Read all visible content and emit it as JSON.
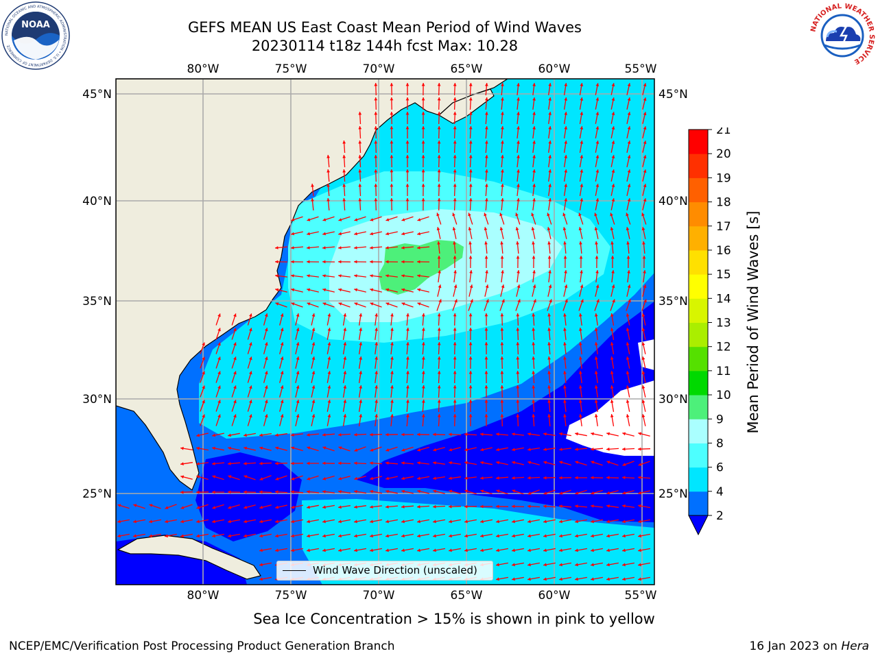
{
  "title": {
    "line1": "GEFS MEAN US East Coast Mean Period of Wind Waves",
    "line2": "20230114 t18z 144h fcst   Max: 10.28"
  },
  "logos": {
    "left": "NOAA",
    "left_ring_text": "NATIONAL OCEANIC AND ATMOSPHERIC ADMINISTRATION • U.S. DEPARTMENT OF COMMERCE",
    "right_ring_text": "NATIONAL WEATHER SERVICE"
  },
  "map": {
    "lon_ticks": [
      "80°W",
      "75°W",
      "70°W",
      "65°W",
      "60°W",
      "55°W"
    ],
    "lat_ticks": [
      "45°N",
      "40°N",
      "35°N",
      "30°N",
      "25°N"
    ],
    "legend_label": "Wind Wave Direction (unscaled)",
    "land_color": "#efedde",
    "arrow_color": "#ff0000"
  },
  "colorbar": {
    "label": "Mean Period of Wind Waves [s]",
    "ticks": [
      "2",
      "4",
      "6",
      "8",
      "9",
      "10",
      "11",
      "12",
      "13",
      "14",
      "15",
      "16",
      "17",
      "18",
      "19",
      "20",
      "21"
    ],
    "colors": [
      "#0070ff",
      "#00e6ff",
      "#4dffff",
      "#aaffff",
      "#4df07a",
      "#00d900",
      "#55e000",
      "#aaee00",
      "#d8f500",
      "#ffff00",
      "#ffe000",
      "#ffb000",
      "#ff8c00",
      "#ff6000",
      "#ff3000",
      "#ff0000"
    ],
    "under_color": "#0000ff"
  },
  "notes": {
    "ice": "Sea Ice Concentration > 15% is shown in pink to yellow"
  },
  "footer": {
    "left": "NCEP/EMC/Verification Post Processing Product Generation Branch",
    "right_date": "16 Jan 2023 on ",
    "right_host": "Hera"
  }
}
